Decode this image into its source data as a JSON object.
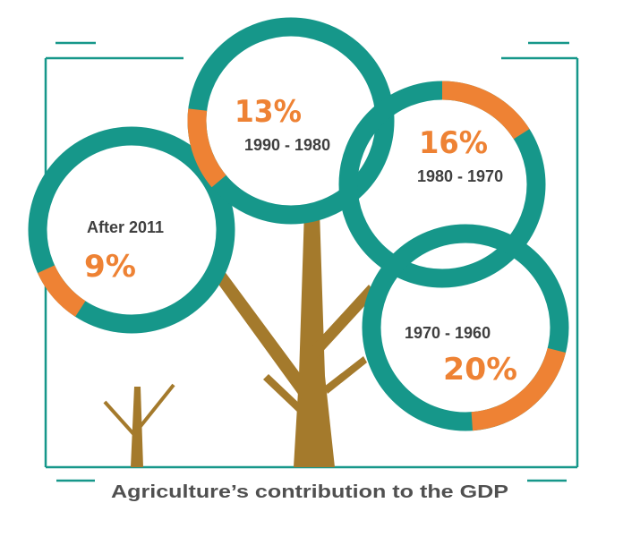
{
  "chart_data": {
    "type": "pie",
    "title": "Agriculture’s contribution to the GDP",
    "slices": [
      {
        "period": "1990 - 1980",
        "value": 13,
        "label": "13%"
      },
      {
        "period": "1980 - 1970",
        "value": 16,
        "label": "16%"
      },
      {
        "period": "After 2011",
        "value": 9,
        "label": "9%"
      },
      {
        "period": "1970 - 1960",
        "value": 20,
        "label": "20%"
      }
    ]
  },
  "colors": {
    "ring": "#16978a",
    "share": "#ee8234",
    "trunk": "#a47a2c",
    "frame": "#16978a",
    "period_text": "#3f3f3f",
    "caption_text": "#505050"
  }
}
